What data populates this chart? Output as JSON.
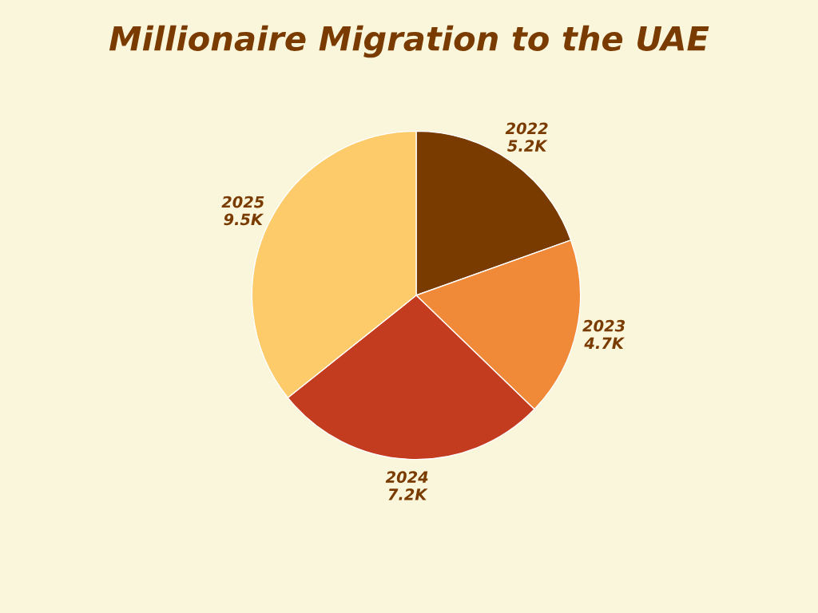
{
  "chart_data": {
    "type": "pie",
    "title": "Millionaire Migration to the UAE",
    "categories": [
      "2022",
      "2023",
      "2024",
      "2025"
    ],
    "values": [
      5.2,
      4.7,
      7.2,
      9.5
    ],
    "value_labels": [
      "5.2K",
      "4.7K",
      "7.2K",
      "9.5K"
    ],
    "colors": [
      "#7a3b00",
      "#f08a38",
      "#c43c20",
      "#fecb6a"
    ]
  }
}
